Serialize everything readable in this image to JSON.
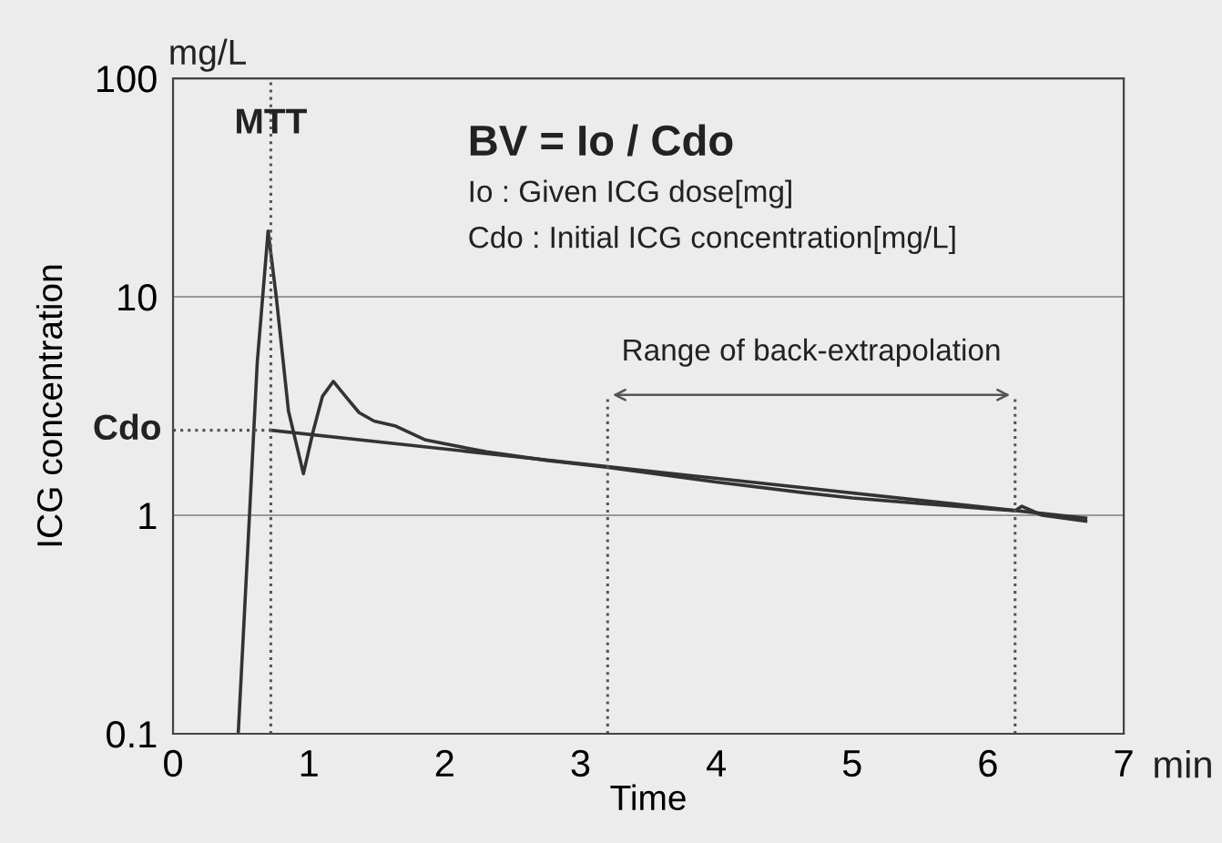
{
  "chart_data": {
    "type": "line",
    "xlabel": "Time",
    "ylabel": "ICG concentration",
    "log": "y",
    "xlim": [
      0,
      7
    ],
    "ylim": [
      0.1,
      100
    ],
    "xticks": [
      0,
      1,
      2,
      3,
      4,
      5,
      6,
      7
    ],
    "yticks": [
      0.1,
      1,
      10,
      100
    ],
    "grid": "y",
    "line_style": "solid",
    "marker": "none",
    "series": [
      {
        "color": "#333333",
        "x": [
          0.48,
          0.565,
          0.62,
          0.7,
          0.76,
          0.85,
          0.96,
          1.03,
          1.1,
          1.18,
          1.27,
          1.37,
          1.48,
          1.64,
          1.86,
          2.31,
          2.76,
          3.19,
          4.0,
          4.64,
          5.0,
          6.0,
          6.2,
          6.25,
          6.4,
          6.72
        ],
        "values": [
          0.1,
          1.06,
          5,
          20,
          10,
          3,
          1.55,
          2.4,
          3.5,
          4.1,
          3.5,
          2.95,
          2.7,
          2.56,
          2.21,
          1.95,
          1.78,
          1.66,
          1.42,
          1.27,
          1.2,
          1.07,
          1.05,
          1.1,
          1.0,
          0.94
        ]
      },
      {
        "color": "#333333",
        "x": [
          0.72,
          6.72
        ],
        "values": [
          2.45,
          0.97
        ]
      }
    ],
    "ref_lines": [
      {
        "axis": "x",
        "value": 0.72,
        "label": "MTT",
        "line_style": "dotted",
        "color": "#555555"
      },
      {
        "axis": "x",
        "value": 3.2,
        "label": null,
        "line_style": "dotted",
        "color": "#555555"
      },
      {
        "axis": "x",
        "value": 6.2,
        "label": null,
        "line_style": "dotted",
        "color": "#555555"
      },
      {
        "axis": "y",
        "value": 2.45,
        "label": "Cdo",
        "line_style": "dotted",
        "color": "#555555"
      }
    ],
    "annotations": [
      "BV = Io / Cdo",
      "Io : Given ICG dose[mg]",
      "Cdo : Initial ICG concentration[mg/L]",
      "mg/L",
      "Range of back-extrapolation",
      "min"
    ]
  }
}
